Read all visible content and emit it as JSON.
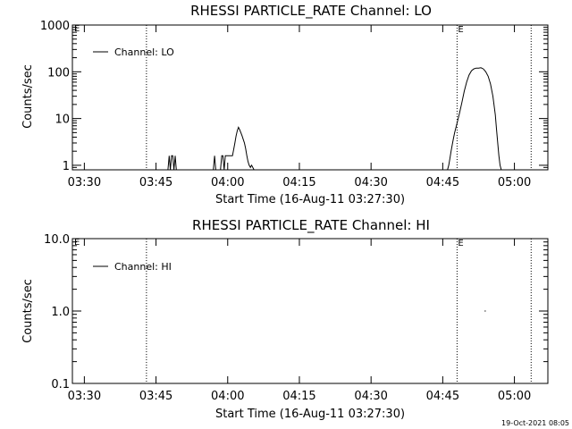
{
  "footer": {
    "date_label": "19-Oct-2021 08:05"
  },
  "chart_data": [
    {
      "type": "line",
      "title": "RHESSI PARTICLE_RATE Channel: LO",
      "xlabel": "Start Time (16-Aug-11 03:27:30)",
      "ylabel": "Counts/sec",
      "yscale": "log",
      "xlim": [
        "03:27:30",
        "05:07:00"
      ],
      "ylim": [
        0.8,
        1000
      ],
      "x_ticks": [
        "03:30",
        "03:45",
        "04:00",
        "04:15",
        "04:30",
        "04:45",
        "05:00"
      ],
      "y_ticks": [
        "1",
        "10",
        "100",
        "1000"
      ],
      "legend": {
        "entries": [
          "Channel: LO"
        ],
        "position": "top-left"
      },
      "markers": [
        {
          "x": "03:43:00",
          "label": ""
        },
        {
          "x": "04:48:00",
          "label": "E"
        },
        {
          "x": "05:03:30",
          "label": ""
        }
      ],
      "corner_label": "E",
      "series": [
        {
          "name": "Channel: LO",
          "x": [
            "03:47:30",
            "03:47:45",
            "03:48:00",
            "03:48:15",
            "03:48:30",
            "03:48:45",
            "03:49:00",
            "03:49:15",
            "03:57:00",
            "03:57:15",
            "03:57:30",
            "03:58:30",
            "03:58:45",
            "03:59:00",
            "03:59:15",
            "03:59:30",
            "04:00:00",
            "04:00:15",
            "04:00:30",
            "04:01:00",
            "04:01:15",
            "04:01:30",
            "04:01:45",
            "04:02:00",
            "04:02:15",
            "04:02:30",
            "04:02:45",
            "04:03:00",
            "04:03:15",
            "04:03:30",
            "04:03:45",
            "04:04:00",
            "04:04:15",
            "04:04:30",
            "04:04:45",
            "04:05:00",
            "04:05:15",
            "04:05:30",
            "04:46:00",
            "04:46:15",
            "04:46:30",
            "04:46:45",
            "04:47:00",
            "04:47:15",
            "04:47:30",
            "04:48:00",
            "04:48:30",
            "04:49:00",
            "04:49:30",
            "04:50:00",
            "04:50:30",
            "04:51:00",
            "04:51:30",
            "04:52:00",
            "04:52:30",
            "04:53:00",
            "04:53:30",
            "04:54:00",
            "04:54:30",
            "04:55:00",
            "04:55:30",
            "04:56:00",
            "04:56:15",
            "04:56:30",
            "04:56:45",
            "04:57:00",
            "04:57:15",
            "04:57:30"
          ],
          "y": [
            0.8,
            1.6,
            0.8,
            1.6,
            1.6,
            0.8,
            1.6,
            0.8,
            0.8,
            1.6,
            0.8,
            0.8,
            1.6,
            1.6,
            0.8,
            1.6,
            1.6,
            1.6,
            1.6,
            1.6,
            2.2,
            3.0,
            4.2,
            5.5,
            6.5,
            5.8,
            5.0,
            4.3,
            3.6,
            3.0,
            2.3,
            1.6,
            1.2,
            1.0,
            0.9,
            1.0,
            0.9,
            0.8,
            0.8,
            1.0,
            1.4,
            2.0,
            2.8,
            3.8,
            5.0,
            8.0,
            13,
            22,
            38,
            60,
            85,
            105,
            115,
            120,
            120,
            122,
            115,
            100,
            80,
            55,
            30,
            12,
            6.0,
            3.0,
            1.6,
            1.0,
            0.8,
            0.8
          ]
        }
      ]
    },
    {
      "type": "line",
      "title": "RHESSI PARTICLE_RATE Channel: HI",
      "xlabel": "Start Time (16-Aug-11 03:27:30)",
      "ylabel": "Counts/sec",
      "yscale": "log",
      "xlim": [
        "03:27:30",
        "05:07:00"
      ],
      "ylim": [
        0.1,
        10
      ],
      "x_ticks": [
        "03:30",
        "03:45",
        "04:00",
        "04:15",
        "04:30",
        "04:45",
        "05:00"
      ],
      "y_ticks": [
        "0.1",
        "1.0",
        "10.0"
      ],
      "legend": {
        "entries": [
          "Channel: HI"
        ],
        "position": "top-left"
      },
      "markers": [
        {
          "x": "03:43:00",
          "label": ""
        },
        {
          "x": "04:48:00",
          "label": "E"
        },
        {
          "x": "05:03:30",
          "label": ""
        }
      ],
      "corner_label": "E",
      "series": [
        {
          "name": "Channel: HI",
          "x": [
            "04:53:45",
            "04:54:00"
          ],
          "y": [
            1.0,
            1.0
          ]
        }
      ]
    }
  ]
}
